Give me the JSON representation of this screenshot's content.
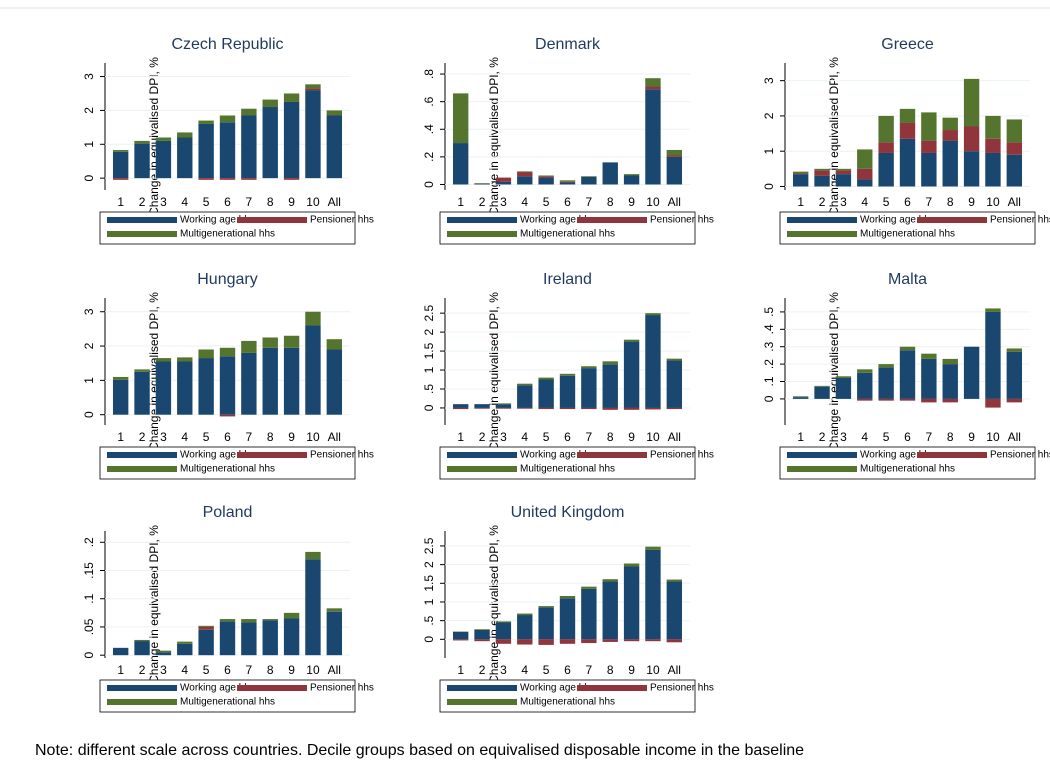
{
  "chart_data": [
    {
      "type": "stacked-bar",
      "title": "Czech Republic",
      "ylabel": "Change in equivalised DPI, %",
      "categories": [
        "1",
        "2",
        "3",
        "4",
        "5",
        "6",
        "7",
        "8",
        "9",
        "10",
        "All"
      ],
      "series": [
        {
          "name": "Working age hhs",
          "color": "#1a476f",
          "values": [
            0.78,
            1.02,
            1.1,
            1.2,
            1.6,
            1.65,
            1.85,
            2.1,
            2.25,
            2.6,
            1.85
          ]
        },
        {
          "name": "Pensioner hhs",
          "color": "#90353b",
          "values": [
            -0.05,
            0,
            0,
            0,
            -0.05,
            -0.05,
            -0.05,
            0,
            -0.05,
            0.05,
            0
          ]
        },
        {
          "name": "Multigenerational hhs",
          "color": "#55752f",
          "values": [
            0.05,
            0.08,
            0.1,
            0.15,
            0.1,
            0.2,
            0.2,
            0.22,
            0.25,
            0.12,
            0.15
          ]
        }
      ],
      "ylim": [
        -0.35,
        3.4
      ],
      "yticks": [
        0,
        1,
        2,
        3
      ],
      "grid": true
    },
    {
      "type": "stacked-bar",
      "title": "Denmark",
      "ylabel": "Change in equivalised DPI, %",
      "categories": [
        "1",
        "2",
        "3",
        "4",
        "5",
        "6",
        "7",
        "8",
        "9",
        "10",
        "All"
      ],
      "series": [
        {
          "name": "Working age hhs",
          "color": "#1a476f",
          "values": [
            0.3,
            0.005,
            0.02,
            0.06,
            0.05,
            0.015,
            0.055,
            0.16,
            0.065,
            0.69,
            0.2
          ]
        },
        {
          "name": "Pensioner hhs",
          "color": "#90353b",
          "values": [
            0,
            0,
            0.03,
            0.03,
            0.01,
            0.005,
            0,
            0,
            0,
            0.02,
            0.01
          ]
        },
        {
          "name": "Multigenerational hhs",
          "color": "#55752f",
          "values": [
            0.36,
            0.005,
            0,
            0.005,
            0.005,
            0.01,
            0.005,
            0,
            0.01,
            0.06,
            0.04
          ]
        }
      ],
      "ylim": [
        -0.04,
        0.88
      ],
      "yticks": [
        0,
        {
          "value": 0.2,
          "label": ".2"
        },
        {
          "value": 0.4,
          "label": ".4"
        },
        {
          "value": 0.6,
          "label": ".6"
        },
        {
          "value": 0.8,
          "label": ".8"
        }
      ],
      "grid": true
    },
    {
      "type": "stacked-bar",
      "title": "Greece",
      "ylabel": "Change in equivalised DPI, %",
      "categories": [
        "1",
        "2",
        "3",
        "4",
        "5",
        "6",
        "7",
        "8",
        "9",
        "10",
        "All"
      ],
      "series": [
        {
          "name": "Working age hhs",
          "color": "#1a476f",
          "values": [
            0.35,
            0.3,
            0.35,
            0.2,
            0.95,
            1.35,
            0.95,
            1.3,
            1.0,
            0.95,
            0.9
          ]
        },
        {
          "name": "Pensioner hhs",
          "color": "#90353b",
          "values": [
            0.02,
            0.15,
            0.1,
            0.3,
            0.3,
            0.45,
            0.35,
            0.3,
            0.7,
            0.4,
            0.35
          ]
        },
        {
          "name": "Multigenerational hhs",
          "color": "#55752f",
          "values": [
            0.05,
            0.05,
            0.05,
            0.55,
            0.75,
            0.4,
            0.8,
            0.35,
            1.35,
            0.65,
            0.65
          ]
        }
      ],
      "ylim": [
        -0.1,
        3.5
      ],
      "yticks": [
        0,
        1,
        2,
        3
      ],
      "grid": true
    },
    {
      "type": "stacked-bar",
      "title": "Hungary",
      "ylabel": "Change in equivalised DPI, %",
      "categories": [
        "1",
        "2",
        "3",
        "4",
        "5",
        "6",
        "7",
        "8",
        "9",
        "10",
        "All"
      ],
      "series": [
        {
          "name": "Working age hhs",
          "color": "#1a476f",
          "values": [
            1.02,
            1.25,
            1.55,
            1.55,
            1.65,
            1.7,
            1.8,
            1.95,
            1.95,
            2.6,
            1.9
          ]
        },
        {
          "name": "Pensioner hhs",
          "color": "#90353b",
          "values": [
            0,
            0,
            0,
            0,
            0,
            -0.05,
            0,
            0,
            0,
            0,
            0
          ]
        },
        {
          "name": "Multigenerational hhs",
          "color": "#55752f",
          "values": [
            0.08,
            0.07,
            0.1,
            0.12,
            0.25,
            0.25,
            0.35,
            0.3,
            0.35,
            0.4,
            0.3
          ]
        }
      ],
      "ylim": [
        -0.3,
        3.4
      ],
      "yticks": [
        0,
        1,
        2,
        3
      ],
      "grid": true
    },
    {
      "type": "stacked-bar",
      "title": "Ireland",
      "ylabel": "Change in equivalised DPI, %",
      "categories": [
        "1",
        "2",
        "3",
        "4",
        "5",
        "6",
        "7",
        "8",
        "9",
        "10",
        "All"
      ],
      "series": [
        {
          "name": "Working age hhs",
          "color": "#1a476f",
          "values": [
            0.1,
            0.1,
            0.1,
            0.6,
            0.75,
            0.85,
            1.05,
            1.15,
            1.75,
            2.45,
            1.25
          ]
        },
        {
          "name": "Pensioner hhs",
          "color": "#90353b",
          "values": [
            -0.03,
            -0.02,
            -0.02,
            -0.02,
            -0.03,
            -0.03,
            -0.03,
            -0.05,
            -0.05,
            -0.04,
            -0.03
          ]
        },
        {
          "name": "Multigenerational hhs",
          "color": "#55752f",
          "values": [
            0,
            0,
            0.02,
            0.04,
            0.05,
            0.05,
            0.05,
            0.08,
            0.05,
            0.05,
            0.05
          ]
        }
      ],
      "ylim": [
        -0.45,
        2.9
      ],
      "yticks": [
        0,
        {
          "value": 0.5,
          "label": ".5"
        },
        1,
        1.5,
        2,
        2.5
      ],
      "grid": true
    },
    {
      "type": "stacked-bar",
      "title": "Malta",
      "ylabel": "Change in equivalised DPI, %",
      "categories": [
        "1",
        "2",
        "3",
        "4",
        "5",
        "6",
        "7",
        "8",
        "9",
        "10",
        "All"
      ],
      "series": [
        {
          "name": "Working age hhs",
          "color": "#1a476f",
          "values": [
            0.01,
            0.07,
            0.12,
            0.15,
            0.18,
            0.28,
            0.23,
            0.2,
            0.3,
            0.5,
            0.27
          ]
        },
        {
          "name": "Pensioner hhs",
          "color": "#90353b",
          "values": [
            0,
            0,
            0,
            -0.01,
            -0.01,
            -0.01,
            -0.02,
            -0.02,
            0,
            -0.05,
            -0.02
          ]
        },
        {
          "name": "Multigenerational hhs",
          "color": "#55752f",
          "values": [
            0.005,
            0.005,
            0.01,
            0.02,
            0.02,
            0.02,
            0.03,
            0.03,
            0,
            0.02,
            0.02
          ]
        }
      ],
      "ylim": [
        -0.15,
        0.58
      ],
      "yticks": [
        0,
        {
          "value": 0.1,
          "label": ".1"
        },
        {
          "value": 0.2,
          "label": ".2"
        },
        {
          "value": 0.3,
          "label": ".3"
        },
        {
          "value": 0.4,
          "label": ".4"
        },
        {
          "value": 0.5,
          "label": ".5"
        }
      ],
      "grid": true
    },
    {
      "type": "stacked-bar",
      "title": "Poland",
      "ylabel": "Change in equivalised DPI, %",
      "categories": [
        "1",
        "2",
        "3",
        "4",
        "5",
        "6",
        "7",
        "8",
        "9",
        "10",
        "All"
      ],
      "series": [
        {
          "name": "Working age hhs",
          "color": "#1a476f",
          "values": [
            0.013,
            0.025,
            0.005,
            0.02,
            0.045,
            0.06,
            0.058,
            0.062,
            0.065,
            0.17,
            0.077
          ]
        },
        {
          "name": "Pensioner hhs",
          "color": "#90353b",
          "values": [
            0,
            0,
            0,
            0,
            0.005,
            0,
            0,
            0,
            0,
            0,
            0
          ]
        },
        {
          "name": "Multigenerational hhs",
          "color": "#55752f",
          "values": [
            0,
            0.002,
            0.003,
            0.004,
            0.002,
            0.004,
            0.006,
            0.002,
            0.01,
            0.013,
            0.006
          ]
        }
      ],
      "ylim": [
        -0.005,
        0.22
      ],
      "yticks": [
        0,
        {
          "value": 0.05,
          "label": ".05"
        },
        {
          "value": 0.1,
          "label": ".1"
        },
        {
          "value": 0.15,
          "label": ".15"
        },
        {
          "value": 0.2,
          "label": ".2"
        }
      ],
      "grid": true
    },
    {
      "type": "stacked-bar",
      "title": "United Kingdom",
      "ylabel": "Change in equivalised DPI, %",
      "categories": [
        "1",
        "2",
        "3",
        "4",
        "5",
        "6",
        "7",
        "8",
        "9",
        "10",
        "All"
      ],
      "series": [
        {
          "name": "Working age hhs",
          "color": "#1a476f",
          "values": [
            0.2,
            0.25,
            0.45,
            0.65,
            0.85,
            1.1,
            1.35,
            1.55,
            1.95,
            2.4,
            1.55
          ]
        },
        {
          "name": "Pensioner hhs",
          "color": "#90353b",
          "values": [
            -0.03,
            -0.05,
            -0.12,
            -0.14,
            -0.15,
            -0.12,
            -0.1,
            -0.07,
            -0.05,
            -0.05,
            -0.08
          ]
        },
        {
          "name": "Multigenerational hhs",
          "color": "#55752f",
          "values": [
            0.01,
            0.02,
            0.03,
            0.04,
            0.04,
            0.06,
            0.06,
            0.06,
            0.08,
            0.08,
            0.05
          ]
        }
      ],
      "ylim": [
        -0.5,
        2.9
      ],
      "yticks": [
        0,
        {
          "value": 0.5,
          "label": ".5"
        },
        1,
        1.5,
        2,
        2.5
      ],
      "grid": true
    }
  ],
  "note": "Note: different scale across countries. Decile groups based on equivalised disposable income in the baseline"
}
